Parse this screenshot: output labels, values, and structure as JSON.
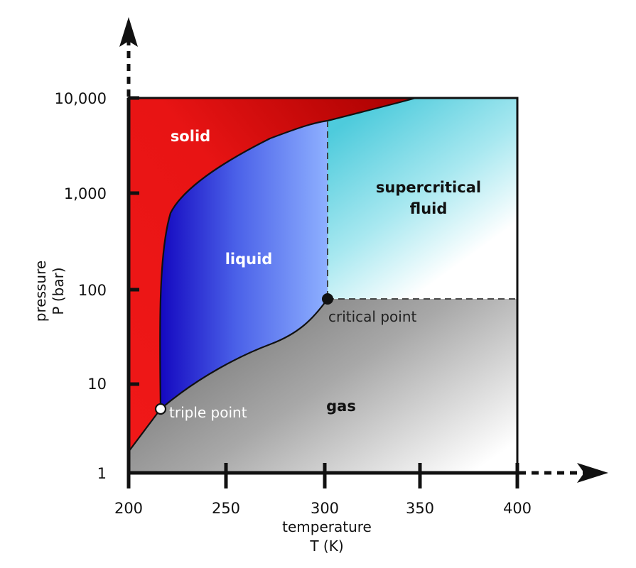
{
  "chart_data": {
    "type": "phase-diagram",
    "x_axis": {
      "title_line1": "temperature",
      "title_line2": "T (K)",
      "ticks": [
        "200",
        "250",
        "300",
        "350",
        "400"
      ],
      "range": [
        200,
        400
      ]
    },
    "y_axis": {
      "title_line1": "pressure",
      "title_line2": "P (bar)",
      "ticks": [
        "1",
        "10",
        "100",
        "1,000",
        "10,000"
      ],
      "range": [
        1,
        10000
      ],
      "scale": "log"
    },
    "regions": {
      "solid": "solid",
      "liquid": "liquid",
      "supercritical_line1": "supercritical",
      "supercritical_line2": "fluid",
      "gas": "gas"
    },
    "points": {
      "triple": {
        "label": "triple point",
        "T": 216.6,
        "P": 5.2
      },
      "critical": {
        "label": "critical point",
        "T": 304.2,
        "P": 73.8
      }
    },
    "colors": {
      "solid": "#e81414",
      "solid_dark": "#b00000",
      "liquid_dark": "#1a10c8",
      "liquid_light": "#86a8ff",
      "supercritical": "#50d0e0",
      "gas_dark": "#7a7a7a",
      "gas_light": "#ffffff"
    },
    "grid": false
  }
}
